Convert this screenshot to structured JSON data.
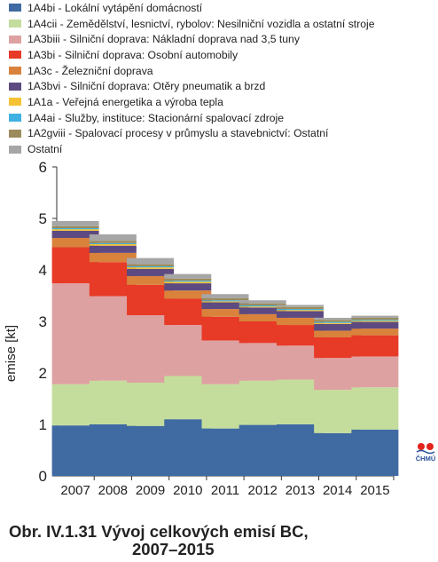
{
  "chart_data": {
    "type": "bar",
    "stacked": true,
    "categories": [
      "2007",
      "2008",
      "2009",
      "2010",
      "2011",
      "2012",
      "2013",
      "2014",
      "2015"
    ],
    "ylabel": "emise [kt]",
    "ylim": [
      0,
      6
    ],
    "yticks": [
      "0",
      "1",
      "2",
      "3",
      "4",
      "5",
      "6"
    ],
    "grid": false,
    "legend_position": "top",
    "series": [
      {
        "name": "1A4bi - Lokální vytápění domácností",
        "color": "#3f6aa2",
        "values": [
          0.98,
          1.0,
          0.97,
          1.1,
          0.92,
          0.99,
          1.0,
          0.83,
          0.9
        ]
      },
      {
        "name": "1A4cii - Zemědělství, lesnictví, rybolov: Nesilniční vozidla a ostatní stroje",
        "color": "#c4dd9c",
        "values": [
          0.8,
          0.85,
          0.84,
          0.84,
          0.86,
          0.86,
          0.87,
          0.84,
          0.82
        ]
      },
      {
        "name": "1A3biii - Silniční doprava: Nákladní doprava nad 3,5 tuny",
        "color": "#dea1a1",
        "values": [
          1.96,
          1.64,
          1.31,
          0.99,
          0.85,
          0.73,
          0.66,
          0.62,
          0.6
        ]
      },
      {
        "name": "1A3bi - Silniční doprava: Osobní automobily",
        "color": "#e73a27",
        "values": [
          0.7,
          0.66,
          0.59,
          0.51,
          0.46,
          0.42,
          0.4,
          0.4,
          0.41
        ]
      },
      {
        "name": "1A3c - Železniční doprava",
        "color": "#d9823c",
        "values": [
          0.18,
          0.18,
          0.17,
          0.16,
          0.15,
          0.14,
          0.14,
          0.13,
          0.13
        ]
      },
      {
        "name": "1A3bvi - Silniční doprava: Otěry pneumatik a brzd",
        "color": "#5c4a80",
        "values": [
          0.14,
          0.14,
          0.14,
          0.14,
          0.13,
          0.13,
          0.13,
          0.13,
          0.13
        ]
      },
      {
        "name": "1A1a - Veřejná energetika a výroba tepla",
        "color": "#f4c232",
        "values": [
          0.03,
          0.03,
          0.03,
          0.03,
          0.02,
          0.02,
          0.02,
          0.02,
          0.02
        ]
      },
      {
        "name": "1A4ai - Služby, instituce: Stacionární spalovací zdroje",
        "color": "#3eb0e2",
        "values": [
          0.02,
          0.02,
          0.02,
          0.02,
          0.02,
          0.02,
          0.02,
          0.02,
          0.02
        ]
      },
      {
        "name": "1A2gviii - Spalovací procesy v průmyslu a stavebnictví: Ostatní",
        "color": "#9c8c5c",
        "values": [
          0.04,
          0.04,
          0.04,
          0.04,
          0.04,
          0.04,
          0.04,
          0.04,
          0.04
        ]
      },
      {
        "name": "Ostatní",
        "color": "#a6a6a6",
        "values": [
          0.1,
          0.13,
          0.12,
          0.09,
          0.08,
          0.06,
          0.04,
          0.04,
          0.04
        ]
      }
    ]
  },
  "logo": {
    "text": "ČHMÚ",
    "color_red": "#e2231a",
    "color_blue": "#2a4f9a"
  },
  "caption": {
    "line1": "Obr. IV.1.31  Vývoj celkových emisí BC,",
    "line2": "2007–2015"
  }
}
